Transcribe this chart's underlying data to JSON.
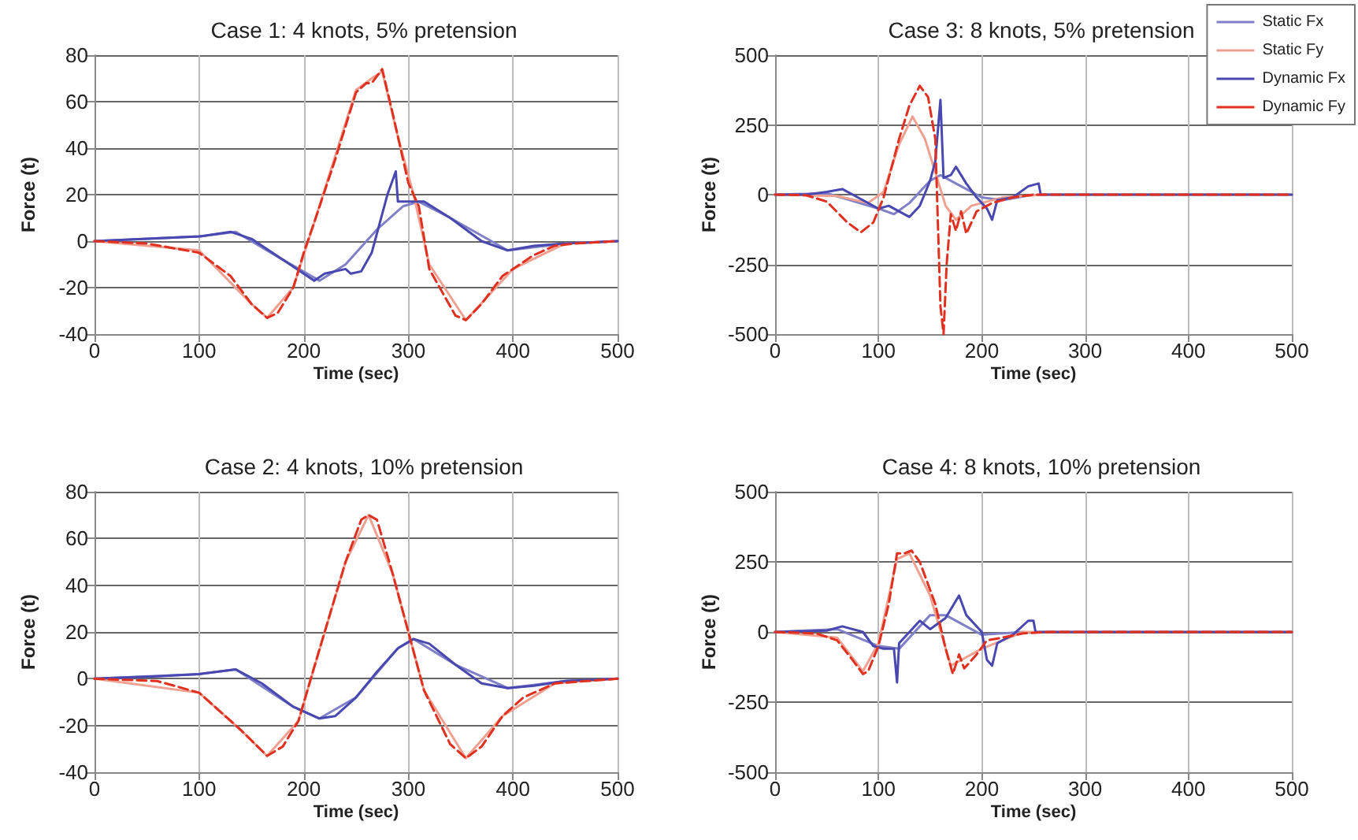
{
  "chart_data": [
    {
      "type": "line",
      "title": "Case 1: 4 knots, 5% pretension",
      "xlabel": "Time (sec)",
      "ylabel": "Force (t)",
      "xlim": [
        0,
        500
      ],
      "xticks": [
        0,
        100,
        200,
        300,
        400,
        500
      ],
      "ylim": [
        -40,
        80
      ],
      "yticks": [
        -40,
        -20,
        0,
        20,
        40,
        60,
        80
      ],
      "grid": true,
      "marker": "none",
      "legend": false,
      "series": [
        {
          "color": "#8080c8",
          "line_style": "solid",
          "x": [
            0,
            100,
            135,
            180,
            215,
            240,
            270,
            295,
            310,
            340,
            395,
            450,
            500
          ],
          "values": [
            0,
            2,
            4,
            -8,
            -17,
            -10,
            5,
            15,
            17,
            10,
            -4,
            -1,
            0
          ]
        },
        {
          "color": "#f0a090",
          "line_style": "solid",
          "x": [
            0,
            100,
            150,
            165,
            190,
            210,
            250,
            265,
            275,
            290,
            305,
            320,
            355,
            400,
            450,
            500
          ],
          "values": [
            0,
            -4,
            -27,
            -33,
            -20,
            8,
            65,
            70,
            73,
            45,
            20,
            -10,
            -34,
            -12,
            -1,
            0
          ]
        },
        {
          "color": "#4848b0",
          "line_style": "solid",
          "x": [
            0,
            50,
            100,
            130,
            150,
            180,
            210,
            220,
            240,
            245,
            255,
            265,
            280,
            288,
            290,
            300,
            315,
            340,
            370,
            395,
            420,
            450,
            500
          ],
          "values": [
            0,
            1,
            2,
            4,
            1,
            -8,
            -17,
            -14,
            -12,
            -14,
            -13,
            -5,
            20,
            30,
            17,
            17,
            17,
            10,
            0,
            -4,
            -2,
            -1,
            0
          ]
        },
        {
          "color": "#e03020",
          "line_style": "dashed",
          "x": [
            0,
            50,
            100,
            130,
            150,
            165,
            175,
            190,
            200,
            210,
            230,
            250,
            260,
            265,
            275,
            285,
            300,
            310,
            320,
            330,
            345,
            355,
            370,
            390,
            400,
            420,
            440,
            460,
            500
          ],
          "values": [
            0,
            -1,
            -5,
            -15,
            -27,
            -33,
            -31,
            -20,
            -5,
            8,
            35,
            64,
            68,
            68,
            74,
            55,
            25,
            15,
            -12,
            -20,
            -32,
            -34,
            -27,
            -15,
            -12,
            -6,
            -2,
            -1,
            0
          ]
        }
      ]
    },
    {
      "type": "line",
      "title": "Case 3: 8 knots, 5% pretension",
      "xlabel": "Time (sec)",
      "ylabel": "Force (t)",
      "xlim": [
        0,
        500
      ],
      "xticks": [
        0,
        100,
        200,
        300,
        400,
        500
      ],
      "ylim": [
        -500,
        500
      ],
      "yticks": [
        -500,
        -250,
        0,
        250,
        500
      ],
      "grid": true,
      "marker": "none",
      "legend": "top right",
      "series": [
        {
          "name": "Static Fx",
          "color": "#8080c8",
          "line_style": "solid",
          "x": [
            0,
            50,
            100,
            115,
            130,
            150,
            160,
            175,
            200,
            220,
            250
          ],
          "values": [
            0,
            5,
            -50,
            -70,
            -30,
            50,
            70,
            40,
            -10,
            -20,
            0
          ]
        },
        {
          "name": "Static Fy",
          "color": "#f0a090",
          "line_style": "solid",
          "x": [
            0,
            60,
            90,
            105,
            120,
            133,
            145,
            155,
            165,
            175,
            190,
            220,
            260,
            500
          ],
          "values": [
            0,
            -5,
            -30,
            10,
            180,
            280,
            200,
            80,
            -40,
            -90,
            -40,
            -10,
            0,
            0
          ]
        },
        {
          "name": "Dynamic Fx",
          "color": "#4848b0",
          "line_style": "solid",
          "x": [
            0,
            30,
            50,
            65,
            80,
            100,
            110,
            130,
            140,
            150,
            155,
            160,
            163,
            170,
            175,
            185,
            195,
            205,
            210,
            215,
            230,
            245,
            255,
            257,
            300,
            500
          ],
          "values": [
            0,
            0,
            10,
            20,
            -10,
            -50,
            -40,
            -80,
            -40,
            50,
            120,
            340,
            60,
            70,
            100,
            40,
            -10,
            -50,
            -90,
            -20,
            -10,
            30,
            40,
            0,
            0,
            0
          ]
        },
        {
          "name": "Dynamic Fy",
          "color": "#e03020",
          "line_style": "dashed",
          "x": [
            0,
            30,
            50,
            70,
            83,
            95,
            105,
            120,
            130,
            140,
            148,
            155,
            160,
            163,
            166,
            170,
            175,
            180,
            185,
            195,
            210,
            230,
            250,
            300,
            500
          ],
          "values": [
            0,
            -2,
            -25,
            -100,
            -135,
            -100,
            -10,
            200,
            320,
            390,
            350,
            200,
            -400,
            -500,
            -250,
            -70,
            -130,
            -60,
            -140,
            -60,
            -30,
            -10,
            0,
            0,
            0
          ]
        }
      ]
    },
    {
      "type": "line",
      "title": "Case 2: 4 knots, 10% pretension",
      "xlabel": "Time (sec)",
      "ylabel": "Force (t)",
      "xlim": [
        0,
        500
      ],
      "xticks": [
        0,
        100,
        200,
        300,
        400,
        500
      ],
      "ylim": [
        -40,
        80
      ],
      "yticks": [
        -40,
        -20,
        0,
        20,
        40,
        60,
        80
      ],
      "grid": true,
      "marker": "none",
      "legend": false,
      "series": [
        {
          "color": "#8080c8",
          "line_style": "solid",
          "x": [
            0,
            100,
            135,
            190,
            215,
            250,
            290,
            305,
            345,
            395,
            450,
            500
          ],
          "values": [
            0,
            2,
            4,
            -12,
            -17,
            -8,
            13,
            17,
            6,
            -4,
            -1,
            0
          ]
        },
        {
          "color": "#f0a090",
          "line_style": "solid",
          "x": [
            0,
            100,
            140,
            165,
            195,
            240,
            262,
            285,
            315,
            355,
            390,
            440,
            500
          ],
          "values": [
            0,
            -6,
            -22,
            -33,
            -18,
            50,
            70,
            45,
            -5,
            -34,
            -16,
            -2,
            0
          ]
        },
        {
          "color": "#4848b0",
          "line_style": "solid",
          "x": [
            0,
            60,
            100,
            135,
            160,
            190,
            215,
            230,
            250,
            270,
            290,
            305,
            320,
            345,
            370,
            395,
            420,
            450,
            500
          ],
          "values": [
            0,
            1,
            2,
            4,
            -2,
            -12,
            -17,
            -16,
            -8,
            3,
            13,
            17,
            15,
            6,
            -2,
            -4,
            -3,
            -1,
            0
          ]
        },
        {
          "color": "#e03020",
          "line_style": "dashed",
          "x": [
            0,
            60,
            100,
            140,
            165,
            180,
            195,
            210,
            240,
            255,
            262,
            270,
            285,
            300,
            315,
            340,
            355,
            370,
            390,
            410,
            440,
            470,
            500
          ],
          "values": [
            0,
            -1,
            -6,
            -22,
            -33,
            -29,
            -18,
            5,
            50,
            68,
            70,
            68,
            45,
            20,
            -5,
            -28,
            -34,
            -29,
            -16,
            -8,
            -2,
            -1,
            0
          ]
        }
      ]
    },
    {
      "type": "line",
      "title": "Case 4: 8 knots, 10% pretension",
      "xlabel": "Time (sec)",
      "ylabel": "Force (t)",
      "xlim": [
        0,
        500
      ],
      "xticks": [
        0,
        100,
        200,
        300,
        400,
        500
      ],
      "ylim": [
        -500,
        500
      ],
      "yticks": [
        -500,
        -250,
        0,
        250,
        500
      ],
      "grid": true,
      "marker": "none",
      "legend": false,
      "series": [
        {
          "color": "#8080c8",
          "line_style": "solid",
          "x": [
            0,
            60,
            100,
            120,
            150,
            165,
            200,
            240
          ],
          "values": [
            0,
            10,
            -50,
            -60,
            60,
            60,
            -10,
            0
          ]
        },
        {
          "color": "#f0a090",
          "line_style": "solid",
          "x": [
            0,
            60,
            85,
            100,
            118,
            130,
            150,
            170,
            200,
            240,
            500
          ],
          "values": [
            0,
            -20,
            -140,
            -40,
            260,
            280,
            130,
            -120,
            -60,
            0,
            0
          ]
        },
        {
          "color": "#4848b0",
          "line_style": "solid",
          "x": [
            0,
            50,
            65,
            85,
            95,
            105,
            115,
            118,
            120,
            140,
            150,
            165,
            178,
            185,
            200,
            205,
            210,
            215,
            230,
            245,
            250,
            252,
            500
          ],
          "values": [
            0,
            5,
            20,
            0,
            -50,
            -60,
            -60,
            -180,
            -40,
            40,
            10,
            50,
            130,
            60,
            0,
            -100,
            -120,
            -40,
            -10,
            40,
            40,
            0,
            0
          ]
        },
        {
          "color": "#e03020",
          "line_style": "dashed",
          "x": [
            0,
            40,
            60,
            75,
            85,
            90,
            100,
            110,
            118,
            125,
            132,
            140,
            155,
            165,
            172,
            178,
            183,
            195,
            205,
            220,
            240,
            265,
            500
          ],
          "values": [
            0,
            -5,
            -30,
            -100,
            -150,
            -140,
            -50,
            100,
            280,
            280,
            290,
            250,
            100,
            -60,
            -150,
            -80,
            -130,
            -80,
            -30,
            -20,
            -5,
            0,
            0
          ]
        }
      ]
    }
  ]
}
